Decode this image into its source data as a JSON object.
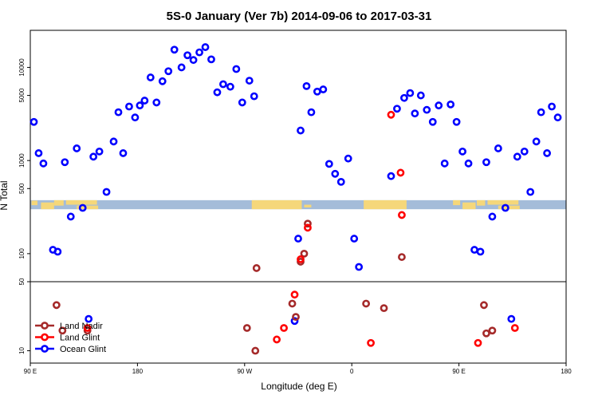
{
  "chart_data": {
    "type": "scatter",
    "title": "5S-0 January (Ver 7b)   2014-09-06 to 2017-03-31",
    "xlabel": "Longitude (deg E)",
    "ylabel": "N Total",
    "y_scale": "log",
    "x_ticks": [
      {
        "value": 0,
        "label": "90 E"
      },
      {
        "value": 90,
        "label": "180"
      },
      {
        "value": 180,
        "label": "90 W"
      },
      {
        "value": 270,
        "label": "0"
      },
      {
        "value": 360,
        "label": "90 E"
      },
      {
        "value": 450,
        "label": "180"
      }
    ],
    "upper_panel": {
      "ylim": [
        50,
        25000
      ],
      "y_ticks": [
        {
          "value": 50,
          "label": "50"
        },
        {
          "value": 100,
          "label": "100"
        },
        {
          "value": 500,
          "label": "500"
        },
        {
          "value": 1000,
          "label": "1000"
        },
        {
          "value": 5000,
          "label": "5000"
        },
        {
          "value": 10000,
          "label": "10000"
        }
      ]
    },
    "lower_panel": {
      "ylim": [
        7.5,
        50
      ],
      "y_ticks": [
        {
          "value": 10,
          "label": "10"
        }
      ]
    },
    "map_strip": {
      "y_low": 300,
      "y_high": 375,
      "sea_color": "#a4bcd9",
      "land_color": "#f5d77a"
    },
    "legend": {
      "position": "bottom-left",
      "entries": [
        {
          "label": "Land Nadir",
          "color": "#a52a2a"
        },
        {
          "label": "Land Glint",
          "color": "#ff0000"
        },
        {
          "label": "Ocean Glint",
          "color": "#0000ff"
        }
      ]
    },
    "series": [
      {
        "name": "Land Nadir",
        "color": "#a52a2a",
        "points": [
          [
            22,
            29
          ],
          [
            27,
            16
          ],
          [
            48,
            16
          ],
          [
            182,
            17
          ],
          [
            190,
            70
          ],
          [
            189,
            10
          ],
          [
            220,
            30
          ],
          [
            223,
            22
          ],
          [
            227,
            82
          ],
          [
            230,
            100
          ],
          [
            233,
            210
          ],
          [
            282,
            30
          ],
          [
            297,
            27
          ],
          [
            312,
            92
          ],
          [
            383,
            15
          ],
          [
            381,
            29
          ],
          [
            388,
            16
          ]
        ]
      },
      {
        "name": "Land Glint",
        "color": "#ff0000",
        "points": [
          [
            48,
            17
          ],
          [
            207,
            13
          ],
          [
            213,
            17
          ],
          [
            222,
            37
          ],
          [
            227,
            87
          ],
          [
            233,
            190
          ],
          [
            286,
            12
          ],
          [
            303,
            3100
          ],
          [
            311,
            740
          ],
          [
            312,
            260
          ],
          [
            376,
            12
          ],
          [
            407,
            17
          ]
        ]
      },
      {
        "name": "Ocean Glint",
        "color": "#0000ff",
        "points": [
          [
            3,
            2600
          ],
          [
            7,
            1200
          ],
          [
            11,
            930
          ],
          [
            19,
            110
          ],
          [
            23,
            105
          ],
          [
            29,
            960
          ],
          [
            34,
            250
          ],
          [
            39,
            1350
          ],
          [
            44,
            310
          ],
          [
            49,
            21
          ],
          [
            53,
            1100
          ],
          [
            58,
            1250
          ],
          [
            64,
            460
          ],
          [
            70,
            1600
          ],
          [
            74,
            3300
          ],
          [
            78,
            1200
          ],
          [
            83,
            3800
          ],
          [
            88,
            2900
          ],
          [
            92,
            3900
          ],
          [
            96,
            4400
          ],
          [
            101,
            7800
          ],
          [
            106,
            4200
          ],
          [
            111,
            7100
          ],
          [
            116,
            9100
          ],
          [
            121,
            15500
          ],
          [
            127,
            10000
          ],
          [
            132,
            13500
          ],
          [
            137,
            12000
          ],
          [
            142,
            14500
          ],
          [
            147,
            16500
          ],
          [
            152,
            12200
          ],
          [
            157,
            5400
          ],
          [
            162,
            6600
          ],
          [
            168,
            6200
          ],
          [
            173,
            9600
          ],
          [
            178,
            4200
          ],
          [
            184,
            7200
          ],
          [
            188,
            4900
          ],
          [
            222,
            20
          ],
          [
            225,
            145
          ],
          [
            227,
            2100
          ],
          [
            232,
            6300
          ],
          [
            236,
            3300
          ],
          [
            241,
            5500
          ],
          [
            246,
            5800
          ],
          [
            251,
            920
          ],
          [
            256,
            720
          ],
          [
            261,
            590
          ],
          [
            267,
            1050
          ],
          [
            272,
            145
          ],
          [
            276,
            72
          ],
          [
            303,
            680
          ],
          [
            308,
            3600
          ],
          [
            314,
            4700
          ],
          [
            319,
            5300
          ],
          [
            323,
            3200
          ],
          [
            328,
            5000
          ],
          [
            333,
            3500
          ],
          [
            338,
            2600
          ],
          [
            343,
            3900
          ],
          [
            348,
            930
          ],
          [
            353,
            4000
          ],
          [
            358,
            2600
          ],
          [
            363,
            1250
          ],
          [
            368,
            930
          ],
          [
            373,
            110
          ],
          [
            378,
            105
          ],
          [
            383,
            960
          ],
          [
            388,
            250
          ],
          [
            393,
            1350
          ],
          [
            399,
            310
          ],
          [
            404,
            21
          ],
          [
            409,
            1100
          ],
          [
            415,
            1250
          ],
          [
            420,
            460
          ],
          [
            425,
            1600
          ],
          [
            429,
            3300
          ],
          [
            434,
            1200
          ],
          [
            438,
            3800
          ],
          [
            443,
            2900
          ]
        ]
      }
    ]
  }
}
